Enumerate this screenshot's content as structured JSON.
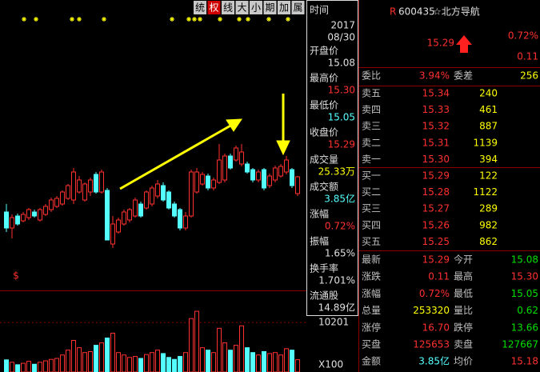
{
  "toolbar": [
    "统",
    "权",
    "线",
    "大",
    "小",
    "期",
    "加",
    "属"
  ],
  "kline": {
    "type": "candlestick",
    "ylim": [
      13.85,
      17.5
    ],
    "marker": "$",
    "candles": [
      [
        14.85,
        14.65,
        14.95,
        14.6
      ],
      [
        14.65,
        14.78,
        14.82,
        14.52
      ],
      [
        14.8,
        14.7,
        14.83,
        14.68
      ],
      [
        14.74,
        14.82,
        14.85,
        14.72
      ],
      [
        14.78,
        14.88,
        14.9,
        14.75
      ],
      [
        14.85,
        14.8,
        14.88,
        14.78
      ],
      [
        14.75,
        14.88,
        14.9,
        14.73
      ],
      [
        14.82,
        14.92,
        14.95,
        14.8
      ],
      [
        14.88,
        15.0,
        15.03,
        14.85
      ],
      [
        14.92,
        15.02,
        15.05,
        14.9
      ],
      [
        14.95,
        15.1,
        15.12,
        14.93
      ],
      [
        15.02,
        15.18,
        15.2,
        15.0
      ],
      [
        15.0,
        15.35,
        15.4,
        14.95
      ],
      [
        15.1,
        15.25,
        15.3,
        15.08
      ],
      [
        15.0,
        15.2,
        15.22,
        14.98
      ],
      [
        15.1,
        15.25,
        15.28,
        15.05
      ],
      [
        15.32,
        15.1,
        15.35,
        15.08
      ],
      [
        15.1,
        15.35,
        15.38,
        15.08
      ],
      [
        15.12,
        14.5,
        15.15,
        14.5
      ],
      [
        14.45,
        14.7,
        14.8,
        14.4
      ],
      [
        14.6,
        14.75,
        14.78,
        14.58
      ],
      [
        14.7,
        14.85,
        14.88,
        14.68
      ],
      [
        14.75,
        14.88,
        14.9,
        14.72
      ],
      [
        14.8,
        15.0,
        15.03,
        14.78
      ],
      [
        14.95,
        14.8,
        14.98,
        14.78
      ],
      [
        14.9,
        15.1,
        15.12,
        14.88
      ],
      [
        14.95,
        15.15,
        15.18,
        14.92
      ],
      [
        15.05,
        15.2,
        15.25,
        15.02
      ],
      [
        15.18,
        15.0,
        15.22,
        14.98
      ],
      [
        15.1,
        14.9,
        15.12,
        14.88
      ],
      [
        14.95,
        14.8,
        14.98,
        14.78
      ],
      [
        14.88,
        14.65,
        14.9,
        14.62
      ],
      [
        14.65,
        14.8,
        14.85,
        14.62
      ],
      [
        14.8,
        15.35,
        15.38,
        14.78
      ],
      [
        15.1,
        15.35,
        15.4,
        15.08
      ],
      [
        15.2,
        15.32,
        15.35,
        15.18
      ],
      [
        15.3,
        15.15,
        15.33,
        15.12
      ],
      [
        15.15,
        15.25,
        15.28,
        15.12
      ],
      [
        15.22,
        15.5,
        15.7,
        15.2
      ],
      [
        15.25,
        15.55,
        15.58,
        15.22
      ],
      [
        15.55,
        15.4,
        15.58,
        15.38
      ],
      [
        15.5,
        15.65,
        15.68,
        15.48
      ],
      [
        15.45,
        15.6,
        15.7,
        15.42
      ],
      [
        15.45,
        15.35,
        15.48,
        15.33
      ],
      [
        15.38,
        15.25,
        15.4,
        15.22
      ],
      [
        15.25,
        15.35,
        15.38,
        15.22
      ],
      [
        15.38,
        15.15,
        15.4,
        15.12
      ],
      [
        15.18,
        15.3,
        15.33,
        15.15
      ],
      [
        15.25,
        15.4,
        15.43,
        15.22
      ],
      [
        15.3,
        15.42,
        15.45,
        15.28
      ],
      [
        15.35,
        15.5,
        15.55,
        15.32
      ],
      [
        15.38,
        15.18,
        15.4,
        15.15
      ],
      [
        15.08,
        15.29,
        15.3,
        15.05
      ]
    ]
  },
  "volume": {
    "type": "bar",
    "ylim": [
      0,
      14000
    ],
    "yticks": [
      10201
    ],
    "unit": "X100",
    "values": [
      2500,
      2000,
      1500,
      1800,
      2200,
      1600,
      2000,
      2300,
      2600,
      2800,
      3500,
      4500,
      6500,
      5000,
      4000,
      4200,
      5500,
      6000,
      7000,
      8000,
      4000,
      3500,
      3000,
      3200,
      2800,
      3600,
      4000,
      4500,
      3800,
      3000,
      2600,
      3200,
      4000,
      11000,
      12500,
      5000,
      4500,
      4000,
      9000,
      6000,
      4500,
      5500,
      9500,
      5000,
      4000,
      3500,
      4200,
      3800,
      4000,
      3500,
      4800,
      4500,
      2533
    ]
  },
  "info": {
    "time_label": "时间",
    "time": [
      "2017",
      "08/30"
    ],
    "items": [
      {
        "label": "开盘价",
        "value": "15.08"
      },
      {
        "label": "最高价",
        "value": "15.30"
      },
      {
        "label": "最低价",
        "value": "15.05"
      },
      {
        "label": "收盘价",
        "value": "15.29"
      },
      {
        "label": "成交量",
        "value": "25.33万"
      },
      {
        "label": "成交额",
        "value": "3.85亿"
      },
      {
        "label": "涨幅",
        "value": "0.72%"
      },
      {
        "label": "振幅",
        "value": "1.65%"
      },
      {
        "label": "换手率",
        "value": "1.701%"
      },
      {
        "label": "流通股",
        "value": "14.89亿"
      }
    ]
  },
  "quote": {
    "flag": "R",
    "code": "600435",
    "name": "☆北方导航",
    "price": "15.29",
    "change_pct": "0.72%",
    "change": "0.11",
    "ratio": {
      "label": "委比",
      "value": "3.94%",
      "label2": "委差",
      "value2": "256"
    },
    "sell": [
      {
        "label": "卖五",
        "price": "15.34",
        "volume": "240"
      },
      {
        "label": "卖四",
        "price": "15.33",
        "volume": "461"
      },
      {
        "label": "卖三",
        "price": "15.32",
        "volume": "887"
      },
      {
        "label": "卖二",
        "price": "15.31",
        "volume": "1139"
      },
      {
        "label": "卖一",
        "price": "15.30",
        "volume": "394"
      }
    ],
    "buy": [
      {
        "label": "买一",
        "price": "15.29",
        "volume": "122"
      },
      {
        "label": "买二",
        "price": "15.28",
        "volume": "1122"
      },
      {
        "label": "买三",
        "price": "15.27",
        "volume": "289"
      },
      {
        "label": "买四",
        "price": "15.26",
        "volume": "982"
      },
      {
        "label": "买五",
        "price": "15.25",
        "volume": "862"
      }
    ],
    "stats": [
      {
        "label": "最新",
        "value": "15.29",
        "label2": "今开",
        "value2": "15.08"
      },
      {
        "label": "涨跌",
        "value": "0.11",
        "label2": "最高",
        "value2": "15.30"
      },
      {
        "label": "涨幅",
        "value": "0.72%",
        "label2": "最低",
        "value2": "15.05"
      },
      {
        "label": "总量",
        "value": "253320",
        "label2": "量比",
        "value2": "0.62"
      },
      {
        "label": "涨停",
        "value": "16.70",
        "label2": "跌停",
        "value2": "13.66"
      },
      {
        "label": "买盘",
        "value": "125653",
        "label2": "卖盘",
        "value2": "127667"
      },
      {
        "label": "金额",
        "value": "3.85亿",
        "label2": "均价",
        "value2": "15.18"
      }
    ]
  }
}
